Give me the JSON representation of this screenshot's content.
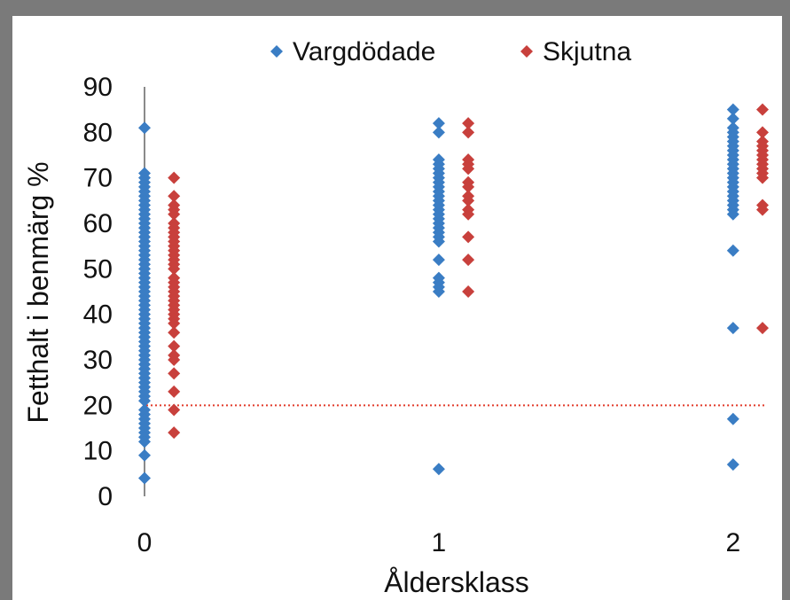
{
  "chart_data": {
    "type": "scatter",
    "xlabel": "Åldersklass",
    "ylabel": "Fetthalt i benmärg %",
    "xlim": [
      0,
      2.1
    ],
    "ylim": [
      0,
      90
    ],
    "x_ticks": [
      "0",
      "1",
      "2"
    ],
    "y_ticks": [
      "0",
      "10",
      "20",
      "30",
      "40",
      "50",
      "60",
      "70",
      "80",
      "90"
    ],
    "grid": false,
    "legend": "top",
    "reference_line": {
      "y": 20,
      "color": "#e23b2b",
      "style": "dotted"
    },
    "series": [
      {
        "name": "Vargdödade",
        "color": "#3a7dc4",
        "marker": "diamond",
        "points": [
          [
            0,
            81
          ],
          [
            0,
            71
          ],
          [
            0,
            70
          ],
          [
            0,
            69
          ],
          [
            0,
            68
          ],
          [
            0,
            67
          ],
          [
            0,
            66
          ],
          [
            0,
            65
          ],
          [
            0,
            64
          ],
          [
            0,
            63
          ],
          [
            0,
            62
          ],
          [
            0,
            61
          ],
          [
            0,
            60
          ],
          [
            0,
            59
          ],
          [
            0,
            58
          ],
          [
            0,
            57
          ],
          [
            0,
            56
          ],
          [
            0,
            55
          ],
          [
            0,
            54
          ],
          [
            0,
            53
          ],
          [
            0,
            52
          ],
          [
            0,
            51
          ],
          [
            0,
            50
          ],
          [
            0,
            49
          ],
          [
            0,
            48
          ],
          [
            0,
            47
          ],
          [
            0,
            46
          ],
          [
            0,
            45
          ],
          [
            0,
            44
          ],
          [
            0,
            43
          ],
          [
            0,
            42
          ],
          [
            0,
            41
          ],
          [
            0,
            40
          ],
          [
            0,
            39
          ],
          [
            0,
            38
          ],
          [
            0,
            37
          ],
          [
            0,
            36
          ],
          [
            0,
            35
          ],
          [
            0,
            34
          ],
          [
            0,
            33
          ],
          [
            0,
            32
          ],
          [
            0,
            31
          ],
          [
            0,
            30
          ],
          [
            0,
            29
          ],
          [
            0,
            28
          ],
          [
            0,
            27
          ],
          [
            0,
            26
          ],
          [
            0,
            25
          ],
          [
            0,
            24
          ],
          [
            0,
            23
          ],
          [
            0,
            22
          ],
          [
            0,
            21
          ],
          [
            0,
            19
          ],
          [
            0,
            18
          ],
          [
            0,
            17
          ],
          [
            0,
            16
          ],
          [
            0,
            15
          ],
          [
            0,
            14
          ],
          [
            0,
            13
          ],
          [
            0,
            12
          ],
          [
            0,
            9
          ],
          [
            0,
            4
          ],
          [
            1,
            82
          ],
          [
            1,
            80
          ],
          [
            1,
            74
          ],
          [
            1,
            73
          ],
          [
            1,
            72
          ],
          [
            1,
            71
          ],
          [
            1,
            70
          ],
          [
            1,
            69
          ],
          [
            1,
            68
          ],
          [
            1,
            67
          ],
          [
            1,
            66
          ],
          [
            1,
            65
          ],
          [
            1,
            64
          ],
          [
            1,
            63
          ],
          [
            1,
            62
          ],
          [
            1,
            61
          ],
          [
            1,
            60
          ],
          [
            1,
            59
          ],
          [
            1,
            58
          ],
          [
            1,
            57
          ],
          [
            1,
            56
          ],
          [
            1,
            52
          ],
          [
            1,
            48
          ],
          [
            1,
            47
          ],
          [
            1,
            46
          ],
          [
            1,
            45
          ],
          [
            1,
            6
          ],
          [
            2,
            85
          ],
          [
            2,
            83
          ],
          [
            2,
            81
          ],
          [
            2,
            80
          ],
          [
            2,
            79
          ],
          [
            2,
            78
          ],
          [
            2,
            77
          ],
          [
            2,
            76
          ],
          [
            2,
            75
          ],
          [
            2,
            74
          ],
          [
            2,
            73
          ],
          [
            2,
            72
          ],
          [
            2,
            71
          ],
          [
            2,
            70
          ],
          [
            2,
            69
          ],
          [
            2,
            68
          ],
          [
            2,
            67
          ],
          [
            2,
            66
          ],
          [
            2,
            65
          ],
          [
            2,
            64
          ],
          [
            2,
            63
          ],
          [
            2,
            62
          ],
          [
            2,
            54
          ],
          [
            2,
            37
          ],
          [
            2,
            17
          ],
          [
            2,
            7
          ]
        ]
      },
      {
        "name": "Skjutna",
        "color": "#c8403c",
        "marker": "diamond",
        "points": [
          [
            0.1,
            70
          ],
          [
            0.1,
            66
          ],
          [
            0.1,
            64
          ],
          [
            0.1,
            63
          ],
          [
            0.1,
            62
          ],
          [
            0.1,
            60
          ],
          [
            0.1,
            59
          ],
          [
            0.1,
            58
          ],
          [
            0.1,
            57
          ],
          [
            0.1,
            56
          ],
          [
            0.1,
            55
          ],
          [
            0.1,
            54
          ],
          [
            0.1,
            53
          ],
          [
            0.1,
            52
          ],
          [
            0.1,
            51
          ],
          [
            0.1,
            50
          ],
          [
            0.1,
            48
          ],
          [
            0.1,
            47
          ],
          [
            0.1,
            46
          ],
          [
            0.1,
            45
          ],
          [
            0.1,
            44
          ],
          [
            0.1,
            43
          ],
          [
            0.1,
            42
          ],
          [
            0.1,
            41
          ],
          [
            0.1,
            40
          ],
          [
            0.1,
            39
          ],
          [
            0.1,
            38
          ],
          [
            0.1,
            36
          ],
          [
            0.1,
            33
          ],
          [
            0.1,
            31
          ],
          [
            0.1,
            30
          ],
          [
            0.1,
            27
          ],
          [
            0.1,
            23
          ],
          [
            0.1,
            19
          ],
          [
            0.1,
            14
          ],
          [
            1.1,
            82
          ],
          [
            1.1,
            80
          ],
          [
            1.1,
            74
          ],
          [
            1.1,
            73
          ],
          [
            1.1,
            72
          ],
          [
            1.1,
            69
          ],
          [
            1.1,
            68
          ],
          [
            1.1,
            66
          ],
          [
            1.1,
            65
          ],
          [
            1.1,
            63
          ],
          [
            1.1,
            62
          ],
          [
            1.1,
            57
          ],
          [
            1.1,
            52
          ],
          [
            1.1,
            45
          ],
          [
            2.1,
            85
          ],
          [
            2.1,
            80
          ],
          [
            2.1,
            78
          ],
          [
            2.1,
            77
          ],
          [
            2.1,
            76
          ],
          [
            2.1,
            75
          ],
          [
            2.1,
            74
          ],
          [
            2.1,
            73
          ],
          [
            2.1,
            72
          ],
          [
            2.1,
            71
          ],
          [
            2.1,
            70
          ],
          [
            2.1,
            64
          ],
          [
            2.1,
            63
          ],
          [
            2.1,
            37
          ]
        ]
      }
    ]
  }
}
